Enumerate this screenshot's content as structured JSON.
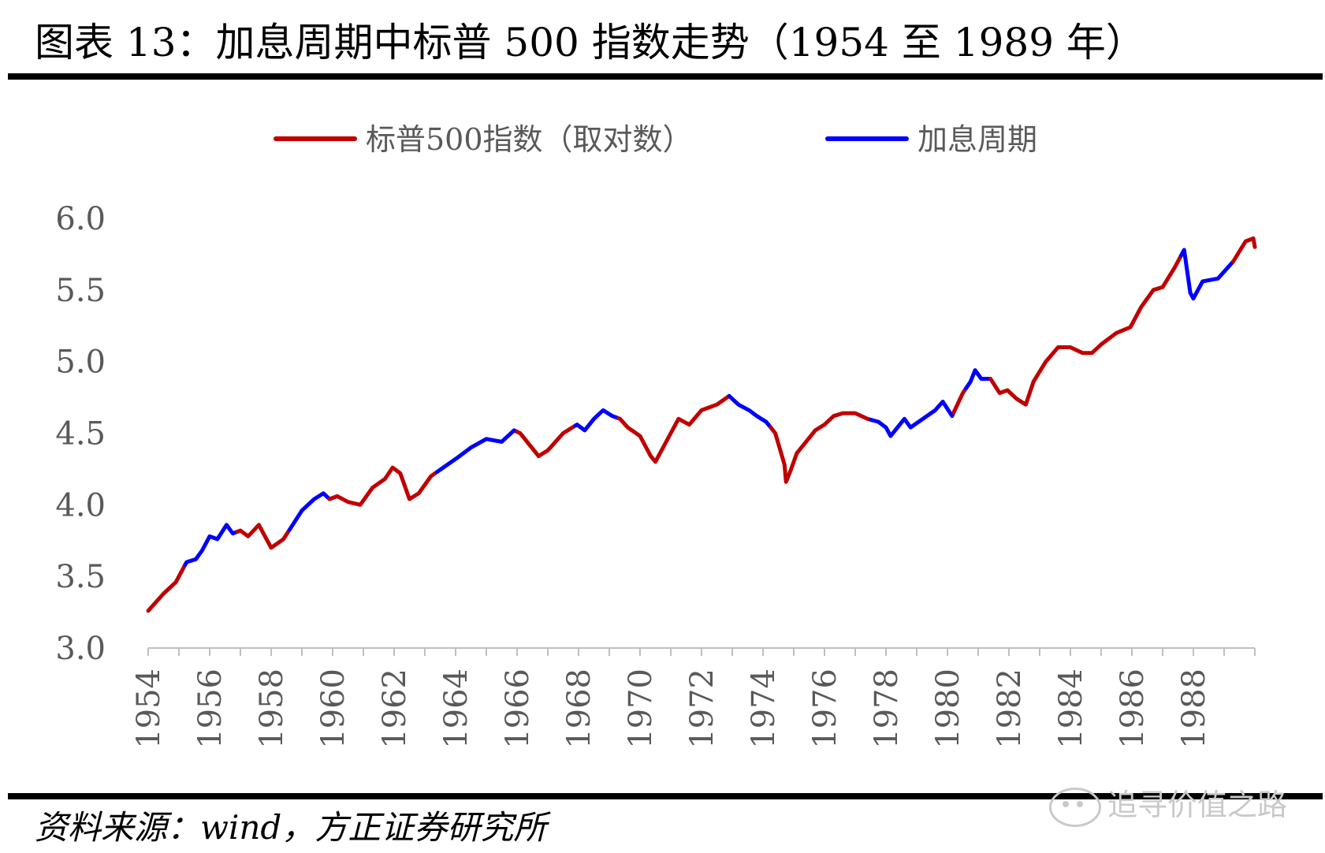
{
  "figure": {
    "title": "图表 13：加息周期中标普 500 指数走势（1954 至 1989 年）",
    "source": "资料来源：wind，方正证券研究所",
    "watermark": "追寻价值之路"
  },
  "colors": {
    "index": "#C00000",
    "hike": "#0000FF",
    "axis": "#BFBFBF",
    "tick_text": "#595959"
  },
  "chart_data": {
    "type": "line",
    "title": "",
    "xlabel": "",
    "ylabel": "",
    "ylim": [
      3.0,
      6.0
    ],
    "yticks": [
      "3.0",
      "3.5",
      "4.0",
      "4.5",
      "5.0",
      "5.5",
      "6.0"
    ],
    "xlim": [
      1954,
      1990
    ],
    "xticks": [
      "1954",
      "1956",
      "1958",
      "1960",
      "1962",
      "1964",
      "1966",
      "1968",
      "1970",
      "1972",
      "1974",
      "1976",
      "1978",
      "1980",
      "1982",
      "1984",
      "1986",
      "1988"
    ],
    "grid": false,
    "legend": "top",
    "series": [
      {
        "name": "标普500指数（取对数）",
        "color": "#C00000"
      },
      {
        "name": "加息周期",
        "color": "#0000FF"
      }
    ],
    "points": [
      [
        1954.0,
        3.26
      ],
      [
        1954.5,
        3.38
      ],
      [
        1954.9,
        3.46
      ],
      [
        1955.25,
        3.6
      ],
      [
        1955.55,
        3.62
      ],
      [
        1955.75,
        3.68
      ],
      [
        1956.0,
        3.78
      ],
      [
        1956.25,
        3.76
      ],
      [
        1956.55,
        3.86
      ],
      [
        1956.75,
        3.8
      ],
      [
        1957.0,
        3.82
      ],
      [
        1957.25,
        3.78
      ],
      [
        1957.6,
        3.86
      ],
      [
        1957.8,
        3.78
      ],
      [
        1958.0,
        3.7
      ],
      [
        1958.4,
        3.76
      ],
      [
        1958.7,
        3.86
      ],
      [
        1959.0,
        3.96
      ],
      [
        1959.4,
        4.04
      ],
      [
        1959.7,
        4.08
      ],
      [
        1959.9,
        4.04
      ],
      [
        1960.15,
        4.06
      ],
      [
        1960.5,
        4.02
      ],
      [
        1960.9,
        4.0
      ],
      [
        1961.3,
        4.12
      ],
      [
        1961.7,
        4.18
      ],
      [
        1961.95,
        4.26
      ],
      [
        1962.2,
        4.22
      ],
      [
        1962.5,
        4.04
      ],
      [
        1962.8,
        4.08
      ],
      [
        1963.2,
        4.2
      ],
      [
        1963.6,
        4.26
      ],
      [
        1964.0,
        4.32
      ],
      [
        1964.5,
        4.4
      ],
      [
        1965.0,
        4.46
      ],
      [
        1965.5,
        4.44
      ],
      [
        1965.9,
        4.52
      ],
      [
        1966.1,
        4.5
      ],
      [
        1966.4,
        4.42
      ],
      [
        1966.7,
        4.34
      ],
      [
        1967.0,
        4.38
      ],
      [
        1967.5,
        4.5
      ],
      [
        1967.95,
        4.56
      ],
      [
        1968.2,
        4.52
      ],
      [
        1968.5,
        4.6
      ],
      [
        1968.8,
        4.66
      ],
      [
        1969.1,
        4.62
      ],
      [
        1969.35,
        4.6
      ],
      [
        1969.6,
        4.54
      ],
      [
        1970.0,
        4.48
      ],
      [
        1970.35,
        4.34
      ],
      [
        1970.5,
        4.3
      ],
      [
        1970.8,
        4.42
      ],
      [
        1971.25,
        4.6
      ],
      [
        1971.6,
        4.56
      ],
      [
        1972.0,
        4.66
      ],
      [
        1972.5,
        4.7
      ],
      [
        1972.9,
        4.76
      ],
      [
        1973.2,
        4.7
      ],
      [
        1973.55,
        4.66
      ],
      [
        1973.8,
        4.62
      ],
      [
        1974.1,
        4.58
      ],
      [
        1974.4,
        4.5
      ],
      [
        1974.7,
        4.28
      ],
      [
        1974.75,
        4.16
      ],
      [
        1974.9,
        4.24
      ],
      [
        1975.1,
        4.36
      ],
      [
        1975.4,
        4.44
      ],
      [
        1975.7,
        4.52
      ],
      [
        1976.0,
        4.56
      ],
      [
        1976.3,
        4.62
      ],
      [
        1976.6,
        4.64
      ],
      [
        1977.0,
        4.64
      ],
      [
        1977.4,
        4.6
      ],
      [
        1977.75,
        4.58
      ],
      [
        1978.0,
        4.54
      ],
      [
        1978.15,
        4.48
      ],
      [
        1978.6,
        4.6
      ],
      [
        1978.8,
        4.54
      ],
      [
        1979.2,
        4.6
      ],
      [
        1979.6,
        4.66
      ],
      [
        1979.85,
        4.72
      ],
      [
        1980.15,
        4.62
      ],
      [
        1980.5,
        4.78
      ],
      [
        1980.75,
        4.86
      ],
      [
        1980.9,
        4.94
      ],
      [
        1981.1,
        4.88
      ],
      [
        1981.4,
        4.88
      ],
      [
        1981.7,
        4.78
      ],
      [
        1981.95,
        4.8
      ],
      [
        1982.25,
        4.74
      ],
      [
        1982.55,
        4.7
      ],
      [
        1982.8,
        4.86
      ],
      [
        1983.2,
        5.0
      ],
      [
        1983.6,
        5.1
      ],
      [
        1984.0,
        5.1
      ],
      [
        1984.4,
        5.06
      ],
      [
        1984.7,
        5.06
      ],
      [
        1985.0,
        5.12
      ],
      [
        1985.5,
        5.2
      ],
      [
        1985.95,
        5.24
      ],
      [
        1986.3,
        5.38
      ],
      [
        1986.7,
        5.5
      ],
      [
        1987.0,
        5.52
      ],
      [
        1987.4,
        5.66
      ],
      [
        1987.7,
        5.78
      ],
      [
        1987.9,
        5.48
      ],
      [
        1988.0,
        5.44
      ],
      [
        1988.3,
        5.56
      ],
      [
        1988.8,
        5.58
      ],
      [
        1989.3,
        5.7
      ],
      [
        1989.7,
        5.84
      ],
      [
        1989.95,
        5.86
      ],
      [
        1990.0,
        5.8
      ]
    ],
    "hike_periods": [
      [
        1955.2,
        1956.9
      ],
      [
        1958.6,
        1959.9
      ],
      [
        1963.4,
        1966.0
      ],
      [
        1967.9,
        1969.3
      ],
      [
        1972.9,
        1974.25
      ],
      [
        1977.5,
        1980.2
      ],
      [
        1980.6,
        1981.4
      ],
      [
        1987.6,
        1989.3
      ]
    ]
  }
}
